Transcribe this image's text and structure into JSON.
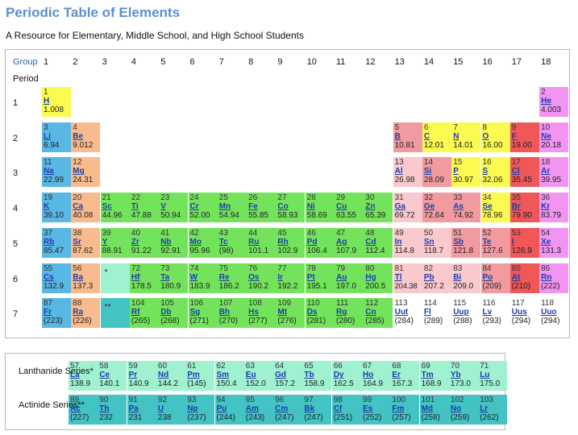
{
  "title": "Periodic Table of Elements",
  "subtitle": "A Resource for Elementary, Middle School, and High School Students",
  "group_label": "Group",
  "period_label": "Period",
  "groups": [
    "1",
    "2",
    "3",
    "4",
    "5",
    "6",
    "7",
    "8",
    "9",
    "10",
    "11",
    "12",
    "13",
    "14",
    "15",
    "16",
    "17",
    "18"
  ],
  "periods": [
    "1",
    "2",
    "3",
    "4",
    "5",
    "6",
    "7"
  ],
  "colors": {
    "alkali": "#59b7e4",
    "alkaline": "#f7bb8d",
    "transition": "#74e35c",
    "post": "#f9c9ce",
    "metalloid": "#f19aa0",
    "nonmetal": "#fafa51",
    "halogen": "#ef5759",
    "noble": "#f294f1",
    "lanthanide": "#9ff1d0",
    "actinide": "#44c3c4"
  },
  "markers": [
    {
      "text": "*",
      "period": 6,
      "group": 3,
      "cat": "lanthanide"
    },
    {
      "text": "**",
      "period": 7,
      "group": 3,
      "cat": "actinide"
    }
  ],
  "series_labels": {
    "lanthanide": "Lanthanide Series*",
    "actinide": "Actinide Series**"
  },
  "elements": [
    {
      "n": "1",
      "s": "H",
      "m": "1.008",
      "p": 1,
      "g": 1,
      "c": "nonmetal"
    },
    {
      "n": "2",
      "s": "He",
      "m": "4.003",
      "p": 1,
      "g": 18,
      "c": "noble"
    },
    {
      "n": "3",
      "s": "Li",
      "m": "6.94",
      "p": 2,
      "g": 1,
      "c": "alkali"
    },
    {
      "n": "4",
      "s": "Be",
      "m": "9.012",
      "p": 2,
      "g": 2,
      "c": "alkaline"
    },
    {
      "n": "5",
      "s": "B",
      "m": "10.81",
      "p": 2,
      "g": 13,
      "c": "metalloid"
    },
    {
      "n": "6",
      "s": "C",
      "m": "12.01",
      "p": 2,
      "g": 14,
      "c": "nonmetal"
    },
    {
      "n": "7",
      "s": "N",
      "m": "14.01",
      "p": 2,
      "g": 15,
      "c": "nonmetal"
    },
    {
      "n": "8",
      "s": "O",
      "m": "16.00",
      "p": 2,
      "g": 16,
      "c": "nonmetal"
    },
    {
      "n": "9",
      "s": "F",
      "m": "19.00",
      "p": 2,
      "g": 17,
      "c": "halogen"
    },
    {
      "n": "10",
      "s": "Ne",
      "m": "20.18",
      "p": 2,
      "g": 18,
      "c": "noble"
    },
    {
      "n": "11",
      "s": "Na",
      "m": "22.99",
      "p": 3,
      "g": 1,
      "c": "alkali"
    },
    {
      "n": "12",
      "s": "Mg",
      "m": "24.31",
      "p": 3,
      "g": 2,
      "c": "alkaline"
    },
    {
      "n": "13",
      "s": "Al",
      "m": "26.98",
      "p": 3,
      "g": 13,
      "c": "post"
    },
    {
      "n": "14",
      "s": "Si",
      "m": "28.09",
      "p": 3,
      "g": 14,
      "c": "metalloid"
    },
    {
      "n": "15",
      "s": "P",
      "m": "30.97",
      "p": 3,
      "g": 15,
      "c": "nonmetal"
    },
    {
      "n": "16",
      "s": "S",
      "m": "32.06",
      "p": 3,
      "g": 16,
      "c": "nonmetal"
    },
    {
      "n": "17",
      "s": "Cl",
      "m": "35.45",
      "p": 3,
      "g": 17,
      "c": "halogen"
    },
    {
      "n": "18",
      "s": "Ar",
      "m": "39.95",
      "p": 3,
      "g": 18,
      "c": "noble"
    },
    {
      "n": "19",
      "s": "K",
      "m": "39.10",
      "p": 4,
      "g": 1,
      "c": "alkali"
    },
    {
      "n": "20",
      "s": "Ca",
      "m": "40.08",
      "p": 4,
      "g": 2,
      "c": "alkaline"
    },
    {
      "n": "21",
      "s": "Sc",
      "m": "44.96",
      "p": 4,
      "g": 3,
      "c": "transition"
    },
    {
      "n": "22",
      "s": "Ti",
      "m": "47.88",
      "p": 4,
      "g": 4,
      "c": "transition"
    },
    {
      "n": "23",
      "s": "V",
      "m": "50.94",
      "p": 4,
      "g": 5,
      "c": "transition"
    },
    {
      "n": "24",
      "s": "Cr",
      "m": "52.00",
      "p": 4,
      "g": 6,
      "c": "transition"
    },
    {
      "n": "25",
      "s": "Mn",
      "m": "54.94",
      "p": 4,
      "g": 7,
      "c": "transition"
    },
    {
      "n": "26",
      "s": "Fe",
      "m": "55.85",
      "p": 4,
      "g": 8,
      "c": "transition"
    },
    {
      "n": "27",
      "s": "Co",
      "m": "58.93",
      "p": 4,
      "g": 9,
      "c": "transition"
    },
    {
      "n": "28",
      "s": "Ni",
      "m": "58.69",
      "p": 4,
      "g": 10,
      "c": "transition"
    },
    {
      "n": "29",
      "s": "Cu",
      "m": "63.55",
      "p": 4,
      "g": 11,
      "c": "transition"
    },
    {
      "n": "30",
      "s": "Zn",
      "m": "65.39",
      "p": 4,
      "g": 12,
      "c": "transition"
    },
    {
      "n": "31",
      "s": "Ga",
      "m": "69.72",
      "p": 4,
      "g": 13,
      "c": "post"
    },
    {
      "n": "32",
      "s": "Ge",
      "m": "72.64",
      "p": 4,
      "g": 14,
      "c": "metalloid"
    },
    {
      "n": "33",
      "s": "As",
      "m": "74.92",
      "p": 4,
      "g": 15,
      "c": "metalloid"
    },
    {
      "n": "34",
      "s": "Se",
      "m": "78.96",
      "p": 4,
      "g": 16,
      "c": "nonmetal"
    },
    {
      "n": "35",
      "s": "Br",
      "m": "79.90",
      "p": 4,
      "g": 17,
      "c": "halogen"
    },
    {
      "n": "36",
      "s": "Kr",
      "m": "83.79",
      "p": 4,
      "g": 18,
      "c": "noble"
    },
    {
      "n": "37",
      "s": "Rb",
      "m": "85.47",
      "p": 5,
      "g": 1,
      "c": "alkali"
    },
    {
      "n": "38",
      "s": "Sr",
      "m": "87.62",
      "p": 5,
      "g": 2,
      "c": "alkaline"
    },
    {
      "n": "39",
      "s": "Y",
      "m": "88.91",
      "p": 5,
      "g": 3,
      "c": "transition"
    },
    {
      "n": "40",
      "s": "Zr",
      "m": "91.22",
      "p": 5,
      "g": 4,
      "c": "transition"
    },
    {
      "n": "41",
      "s": "Nb",
      "m": "92.91",
      "p": 5,
      "g": 5,
      "c": "transition"
    },
    {
      "n": "42",
      "s": "Mo",
      "m": "95.96",
      "p": 5,
      "g": 6,
      "c": "transition"
    },
    {
      "n": "43",
      "s": "Tc",
      "m": "(98)",
      "p": 5,
      "g": 7,
      "c": "transition"
    },
    {
      "n": "44",
      "s": "Ru",
      "m": "101.1",
      "p": 5,
      "g": 8,
      "c": "transition"
    },
    {
      "n": "45",
      "s": "Rh",
      "m": "102.9",
      "p": 5,
      "g": 9,
      "c": "transition"
    },
    {
      "n": "46",
      "s": "Pd",
      "m": "106.4",
      "p": 5,
      "g": 10,
      "c": "transition"
    },
    {
      "n": "47",
      "s": "Ag",
      "m": "107.9",
      "p": 5,
      "g": 11,
      "c": "transition"
    },
    {
      "n": "48",
      "s": "Cd",
      "m": "112.4",
      "p": 5,
      "g": 12,
      "c": "transition"
    },
    {
      "n": "49",
      "s": "In",
      "m": "114.8",
      "p": 5,
      "g": 13,
      "c": "post"
    },
    {
      "n": "50",
      "s": "Sn",
      "m": "118.7",
      "p": 5,
      "g": 14,
      "c": "post"
    },
    {
      "n": "51",
      "s": "Sb",
      "m": "121.8",
      "p": 5,
      "g": 15,
      "c": "metalloid"
    },
    {
      "n": "52",
      "s": "Te",
      "m": "127.6",
      "p": 5,
      "g": 16,
      "c": "metalloid"
    },
    {
      "n": "53",
      "s": "I",
      "m": "126.9",
      "p": 5,
      "g": 17,
      "c": "halogen"
    },
    {
      "n": "54",
      "s": "Xe",
      "m": "131.3",
      "p": 5,
      "g": 18,
      "c": "noble"
    },
    {
      "n": "55",
      "s": "Cs",
      "m": "132.9",
      "p": 6,
      "g": 1,
      "c": "alkali"
    },
    {
      "n": "56",
      "s": "Ba",
      "m": "137.3",
      "p": 6,
      "g": 2,
      "c": "alkaline"
    },
    {
      "n": "72",
      "s": "Hf",
      "m": "178.5",
      "p": 6,
      "g": 4,
      "c": "transition"
    },
    {
      "n": "73",
      "s": "Ta",
      "m": "180.9",
      "p": 6,
      "g": 5,
      "c": "transition"
    },
    {
      "n": "74",
      "s": "W",
      "m": "183.9",
      "p": 6,
      "g": 6,
      "c": "transition"
    },
    {
      "n": "75",
      "s": "Re",
      "m": "186.2",
      "p": 6,
      "g": 7,
      "c": "transition"
    },
    {
      "n": "76",
      "s": "Os",
      "m": "190.2",
      "p": 6,
      "g": 8,
      "c": "transition"
    },
    {
      "n": "77",
      "s": "Ir",
      "m": "192.2",
      "p": 6,
      "g": 9,
      "c": "transition"
    },
    {
      "n": "78",
      "s": "Pt",
      "m": "195.1",
      "p": 6,
      "g": 10,
      "c": "transition"
    },
    {
      "n": "79",
      "s": "Au",
      "m": "197.0",
      "p": 6,
      "g": 11,
      "c": "transition"
    },
    {
      "n": "80",
      "s": "Hg",
      "m": "200.5",
      "p": 6,
      "g": 12,
      "c": "transition"
    },
    {
      "n": "81",
      "s": "Tl",
      "m": "204.38",
      "p": 6,
      "g": 13,
      "c": "post"
    },
    {
      "n": "82",
      "s": "Pb",
      "m": "207.2",
      "p": 6,
      "g": 14,
      "c": "post"
    },
    {
      "n": "83",
      "s": "Bi",
      "m": "209.0",
      "p": 6,
      "g": 15,
      "c": "post"
    },
    {
      "n": "84",
      "s": "Po",
      "m": "(209)",
      "p": 6,
      "g": 16,
      "c": "metalloid"
    },
    {
      "n": "85",
      "s": "At",
      "m": "(210)",
      "p": 6,
      "g": 17,
      "c": "halogen"
    },
    {
      "n": "86",
      "s": "Rn",
      "m": "(222)",
      "p": 6,
      "g": 18,
      "c": "noble"
    },
    {
      "n": "87",
      "s": "Fr",
      "m": "(223)",
      "p": 7,
      "g": 1,
      "c": "alkali"
    },
    {
      "n": "88",
      "s": "Ra",
      "m": "(226)",
      "p": 7,
      "g": 2,
      "c": "alkaline"
    },
    {
      "n": "104",
      "s": "Rf",
      "m": "(265)",
      "p": 7,
      "g": 4,
      "c": "transition"
    },
    {
      "n": "105",
      "s": "Db",
      "m": "(268)",
      "p": 7,
      "g": 5,
      "c": "transition"
    },
    {
      "n": "106",
      "s": "Sg",
      "m": "(271)",
      "p": 7,
      "g": 6,
      "c": "transition"
    },
    {
      "n": "107",
      "s": "Bh",
      "m": "(270)",
      "p": 7,
      "g": 7,
      "c": "transition"
    },
    {
      "n": "108",
      "s": "Hs",
      "m": "(277)",
      "p": 7,
      "g": 8,
      "c": "transition"
    },
    {
      "n": "109",
      "s": "Mt",
      "m": "(276)",
      "p": 7,
      "g": 9,
      "c": "transition"
    },
    {
      "n": "110",
      "s": "Ds",
      "m": "(281)",
      "p": 7,
      "g": 10,
      "c": "transition"
    },
    {
      "n": "111",
      "s": "Rg",
      "m": "(280)",
      "p": 7,
      "g": 11,
      "c": "transition"
    },
    {
      "n": "112",
      "s": "Cn",
      "m": "(285)",
      "p": 7,
      "g": 12,
      "c": "transition"
    },
    {
      "n": "113",
      "s": "Uut",
      "m": "(284)",
      "p": 7,
      "g": 13,
      "c": "none"
    },
    {
      "n": "114",
      "s": "Fl",
      "m": "(289)",
      "p": 7,
      "g": 14,
      "c": "none"
    },
    {
      "n": "115",
      "s": "Uup",
      "m": "(288)",
      "p": 7,
      "g": 15,
      "c": "none"
    },
    {
      "n": "116",
      "s": "Lv",
      "m": "(293)",
      "p": 7,
      "g": 16,
      "c": "none"
    },
    {
      "n": "117",
      "s": "Uus",
      "m": "(294)",
      "p": 7,
      "g": 17,
      "c": "none"
    },
    {
      "n": "118",
      "s": "Uuo",
      "m": "(294)",
      "p": 7,
      "g": 18,
      "c": "none"
    }
  ],
  "lanthanides": [
    {
      "n": "57",
      "s": "La",
      "m": "138.9"
    },
    {
      "n": "58",
      "s": "Ce",
      "m": "140.1"
    },
    {
      "n": "59",
      "s": "Pr",
      "m": "140.9"
    },
    {
      "n": "60",
      "s": "Nd",
      "m": "144.2"
    },
    {
      "n": "61",
      "s": "Pm",
      "m": "(145)"
    },
    {
      "n": "62",
      "s": "Sm",
      "m": "150.4"
    },
    {
      "n": "63",
      "s": "Eu",
      "m": "152.0"
    },
    {
      "n": "64",
      "s": "Gd",
      "m": "157.2"
    },
    {
      "n": "65",
      "s": "Tb",
      "m": "158.9"
    },
    {
      "n": "66",
      "s": "Dy",
      "m": "162.5"
    },
    {
      "n": "67",
      "s": "Ho",
      "m": "164.9"
    },
    {
      "n": "68",
      "s": "Er",
      "m": "167.3"
    },
    {
      "n": "69",
      "s": "Tm",
      "m": "168.9"
    },
    {
      "n": "70",
      "s": "Yb",
      "m": "173.0"
    },
    {
      "n": "71",
      "s": "Lu",
      "m": "175.0"
    }
  ],
  "actinides": [
    {
      "n": "89",
      "s": "Ac",
      "m": "(227)"
    },
    {
      "n": "90",
      "s": "Th",
      "m": "232"
    },
    {
      "n": "91",
      "s": "Pa",
      "m": "231"
    },
    {
      "n": "92",
      "s": "U",
      "m": "238"
    },
    {
      "n": "93",
      "s": "Np",
      "m": "(237)"
    },
    {
      "n": "94",
      "s": "Pu",
      "m": "(244)"
    },
    {
      "n": "95",
      "s": "Am",
      "m": "(243)"
    },
    {
      "n": "96",
      "s": "Cm",
      "m": "(247)"
    },
    {
      "n": "97",
      "s": "Bk",
      "m": "(247)"
    },
    {
      "n": "98",
      "s": "Cf",
      "m": "(251)"
    },
    {
      "n": "99",
      "s": "Es",
      "m": "(252)"
    },
    {
      "n": "100",
      "s": "Fm",
      "m": "(257)"
    },
    {
      "n": "101",
      "s": "Md",
      "m": "(258)"
    },
    {
      "n": "102",
      "s": "No",
      "m": "(259)"
    },
    {
      "n": "103",
      "s": "Lr",
      "m": "(262)"
    }
  ]
}
